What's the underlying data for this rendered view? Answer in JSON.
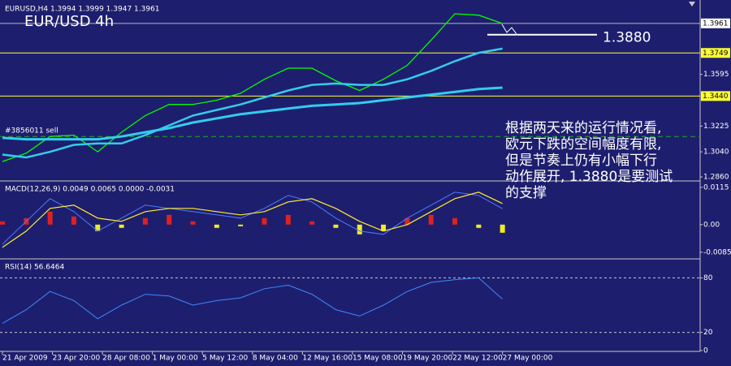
{
  "chart_data": [
    {
      "type": "line",
      "title": "EURUSD,H4  1.3994 1.3999 1.3947 1.3961",
      "label": "EUR/USD  4h",
      "x": [
        0,
        10,
        20,
        30,
        40,
        50,
        60,
        70,
        80,
        90,
        100,
        110,
        120,
        130,
        140,
        150,
        160,
        170,
        180,
        190,
        200,
        210
      ],
      "series": [
        {
          "color": "#00ff00",
          "width": 1.3,
          "values": [
            1.297,
            1.303,
            1.315,
            1.316,
            1.304,
            1.318,
            1.33,
            1.338,
            1.338,
            1.341,
            1.346,
            1.356,
            1.364,
            1.364,
            1.355,
            1.348,
            1.356,
            1.366,
            1.384,
            1.403,
            1.402,
            1.396
          ]
        },
        {
          "color": "#33ccee",
          "width": 2.5,
          "values": [
            1.302,
            1.3,
            1.304,
            1.309,
            1.31,
            1.31,
            1.316,
            1.323,
            1.33,
            1.334,
            1.338,
            1.343,
            1.348,
            1.352,
            1.353,
            1.352,
            1.352,
            1.356,
            1.362,
            1.369,
            1.375,
            1.378
          ]
        },
        {
          "color": "#33ccee",
          "width": 3,
          "values": [
            1.314,
            1.313,
            1.313,
            1.313,
            1.313,
            1.315,
            1.318,
            1.321,
            1.325,
            1.328,
            1.331,
            1.333,
            1.335,
            1.337,
            1.338,
            1.339,
            1.341,
            1.343,
            1.345,
            1.347,
            1.349,
            1.35
          ]
        }
      ],
      "xlim": [
        0,
        293
      ],
      "ylim": [
        1.2837,
        1.4117
      ],
      "yticks": [
        1.3595,
        1.3225,
        {
          "value": 1.304,
          "label": "1.3040"
        },
        {
          "value": 1.286,
          "label": "1.2860"
        }
      ],
      "grid": false,
      "levels": [
        {
          "value": 1.3961,
          "color": "#b8b8b8",
          "box": "#ffffff"
        },
        {
          "value": 1.3749,
          "color": "#ffff33",
          "box": "#ffff33"
        },
        {
          "value": 1.344,
          "label": "1.3440",
          "color": "#ffff33",
          "box": "#ffff33"
        },
        {
          "value": 1.315,
          "color": "#22aa22",
          "dash": true,
          "text": "#3856011 sell"
        }
      ],
      "annotation": {
        "value": 1.388,
        "label": "1.3880"
      },
      "note_lines": [
        "根据两天来的运行情况看,",
        "欧元下跌的空间幅度有限,",
        "但是节奏上仍有小幅下行",
        "动作展开, 1.3880是要测试",
        "的支撑"
      ]
    },
    {
      "type": "macd",
      "title": "MACD(12,26,9) 0.0049 0.0065 0.0000 -0.0031",
      "x": [
        0,
        10,
        20,
        30,
        40,
        50,
        60,
        70,
        80,
        90,
        100,
        110,
        120,
        130,
        140,
        150,
        160,
        170,
        180,
        190,
        200,
        210
      ],
      "histogram": {
        "colors": [
          "#dd2222",
          "#eeee22"
        ],
        "values": [
          0.001,
          0.002,
          0.004,
          0.0025,
          -0.002,
          -0.001,
          0.002,
          0.003,
          0.001,
          -0.001,
          -0.0005,
          0.002,
          0.003,
          0.001,
          -0.001,
          -0.003,
          -0.002,
          0.002,
          0.003,
          0.002,
          -0.001,
          -0.0025
        ]
      },
      "series": [
        {
          "color": "#4a7cff",
          "width": 1,
          "values": [
            -0.006,
            0.001,
            0.008,
            0.004,
            -0.002,
            0.002,
            0.006,
            0.005,
            0.004,
            0.003,
            0.002,
            0.005,
            0.009,
            0.007,
            0.002,
            -0.002,
            -0.003,
            0.002,
            0.006,
            0.01,
            0.009,
            0.0049
          ]
        },
        {
          "color": "#ffee33",
          "width": 1.2,
          "values": [
            -0.007,
            -0.002,
            0.005,
            0.006,
            0.002,
            0.001,
            0.004,
            0.005,
            0.005,
            0.004,
            0.003,
            0.004,
            0.007,
            0.008,
            0.005,
            0.001,
            -0.002,
            0.0,
            0.004,
            0.008,
            0.01,
            0.0065
          ]
        }
      ],
      "xlim": [
        0,
        293
      ],
      "ylim": [
        -0.0103,
        0.0132
      ],
      "yticks": [
        0.0115,
        {
          "value": 0,
          "label": "0.00"
        },
        -0.0085
      ],
      "grid": false
    },
    {
      "type": "line",
      "title": "RSI(14) 56.6464",
      "x": [
        0,
        10,
        20,
        30,
        40,
        50,
        60,
        70,
        80,
        90,
        100,
        110,
        120,
        130,
        140,
        150,
        160,
        170,
        180,
        190,
        200,
        210
      ],
      "series": [
        {
          "color": "#3d8bff",
          "width": 1,
          "values": [
            30,
            45,
            65,
            55,
            35,
            50,
            62,
            60,
            50,
            55,
            58,
            68,
            72,
            62,
            45,
            38,
            50,
            65,
            75,
            78,
            80,
            56.6464
          ]
        }
      ],
      "xlim": [
        0,
        293
      ],
      "ylim": [
        0,
        100
      ],
      "yticks": [
        0,
        20,
        80
      ],
      "grid": true,
      "xticks": [
        {
          "value": 0,
          "label": "21 Apr 2009"
        },
        {
          "value": 21,
          "label": "23 Apr 20:00"
        },
        {
          "value": 42,
          "label": "28 Apr 08:00"
        },
        {
          "value": 63,
          "label": "1 May 00:00"
        },
        {
          "value": 84,
          "label": "5 May 12:00"
        },
        {
          "value": 105,
          "label": "8 May 04:00"
        },
        {
          "value": 126,
          "label": "12 May 16:00"
        },
        {
          "value": 147,
          "label": "15 May 08:00"
        },
        {
          "value": 168,
          "label": "19 May 20:00"
        },
        {
          "value": 189,
          "label": "22 May 12:00"
        },
        {
          "value": 210,
          "label": "27 May 00:00"
        }
      ]
    }
  ]
}
